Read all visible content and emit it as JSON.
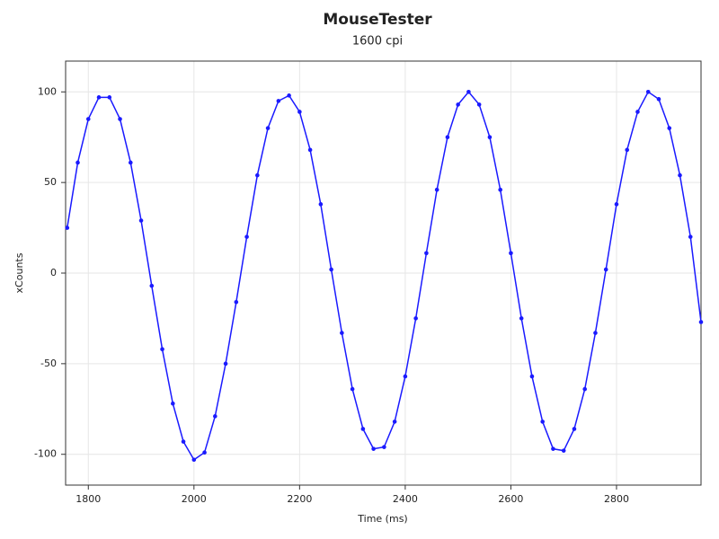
{
  "chart_data": {
    "type": "line",
    "title": "MouseTester",
    "subtitle": "1600 cpi",
    "x_label": "Time (ms)",
    "y_label": "xCounts",
    "x": [
      1760,
      1780,
      1800,
      1820,
      1840,
      1860,
      1880,
      1900,
      1920,
      1940,
      1960,
      1980,
      2000,
      2020,
      2040,
      2060,
      2080,
      2100,
      2120,
      2140,
      2160,
      2180,
      2200,
      2220,
      2240,
      2260,
      2280,
      2300,
      2320,
      2340,
      2360,
      2380,
      2400,
      2420,
      2440,
      2460,
      2480,
      2500,
      2520,
      2540,
      2560,
      2580,
      2600,
      2620,
      2640,
      2660,
      2680,
      2700,
      2720,
      2740,
      2760,
      2780,
      2800,
      2820,
      2840,
      2860,
      2880,
      2900,
      2920,
      2940,
      2960
    ],
    "series": [
      {
        "name": "xCounts",
        "color": "#1a1aff",
        "values": [
          25,
          61,
          85,
          97,
          97,
          85,
          61,
          29,
          -7,
          -42,
          -72,
          -93,
          -103,
          -99,
          -79,
          -50,
          -16,
          20,
          54,
          80,
          95,
          98,
          89,
          68,
          38,
          2,
          -33,
          -64,
          -86,
          -97,
          -96,
          -82,
          -57,
          -25,
          11,
          46,
          75,
          93,
          100,
          93,
          75,
          46,
          11,
          -25,
          -57,
          -82,
          -97,
          -98,
          -86,
          -64,
          -33,
          2,
          38,
          68,
          89,
          100,
          96,
          80,
          54,
          20,
          -27
        ]
      }
    ],
    "xlim": [
      1757,
      2960
    ],
    "ylim": [
      -117,
      117
    ],
    "xticks": [
      1800,
      2000,
      2200,
      2400,
      2600,
      2800
    ],
    "yticks": [
      -100,
      -50,
      0,
      50,
      100
    ],
    "grid": true,
    "markers": true
  }
}
